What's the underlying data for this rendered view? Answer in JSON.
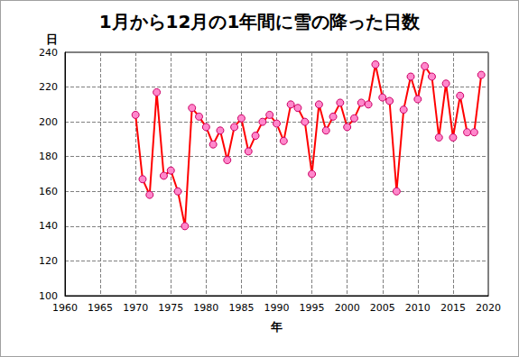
{
  "chart_data": {
    "type": "line",
    "title": "1月から12月の1年間に雪の降った日数",
    "x_label": "年",
    "y_label": "日",
    "x": [
      1970,
      1971,
      1972,
      1973,
      1974,
      1975,
      1976,
      1977,
      1978,
      1979,
      1980,
      1981,
      1982,
      1983,
      1984,
      1985,
      1986,
      1987,
      1988,
      1989,
      1990,
      1991,
      1992,
      1993,
      1994,
      1995,
      1996,
      1997,
      1998,
      1999,
      2000,
      2001,
      2002,
      2003,
      2004,
      2005,
      2006,
      2007,
      2008,
      2009,
      2010,
      2011,
      2012,
      2013,
      2014,
      2015,
      2016,
      2017,
      2018,
      2019
    ],
    "values": [
      204,
      167,
      158,
      217,
      169,
      172,
      160,
      140,
      208,
      203,
      197,
      187,
      195,
      178,
      197,
      202,
      183,
      192,
      200,
      204,
      199,
      189,
      210,
      208,
      200,
      170,
      210,
      195,
      203,
      211,
      197,
      202,
      211,
      210,
      233,
      214,
      212,
      160,
      207,
      226,
      213,
      232,
      226,
      191,
      222,
      191,
      215,
      194,
      194,
      227
    ],
    "color": "#ff0000",
    "marker": "circle",
    "xlim": [
      1960,
      2020
    ],
    "xticks": [
      1960,
      1965,
      1970,
      1975,
      1980,
      1985,
      1990,
      1995,
      2000,
      2005,
      2010,
      2015,
      2020
    ],
    "ylim": [
      100,
      240
    ],
    "yticks": [
      100,
      120,
      140,
      160,
      180,
      200,
      220,
      240
    ],
    "grid": true
  }
}
